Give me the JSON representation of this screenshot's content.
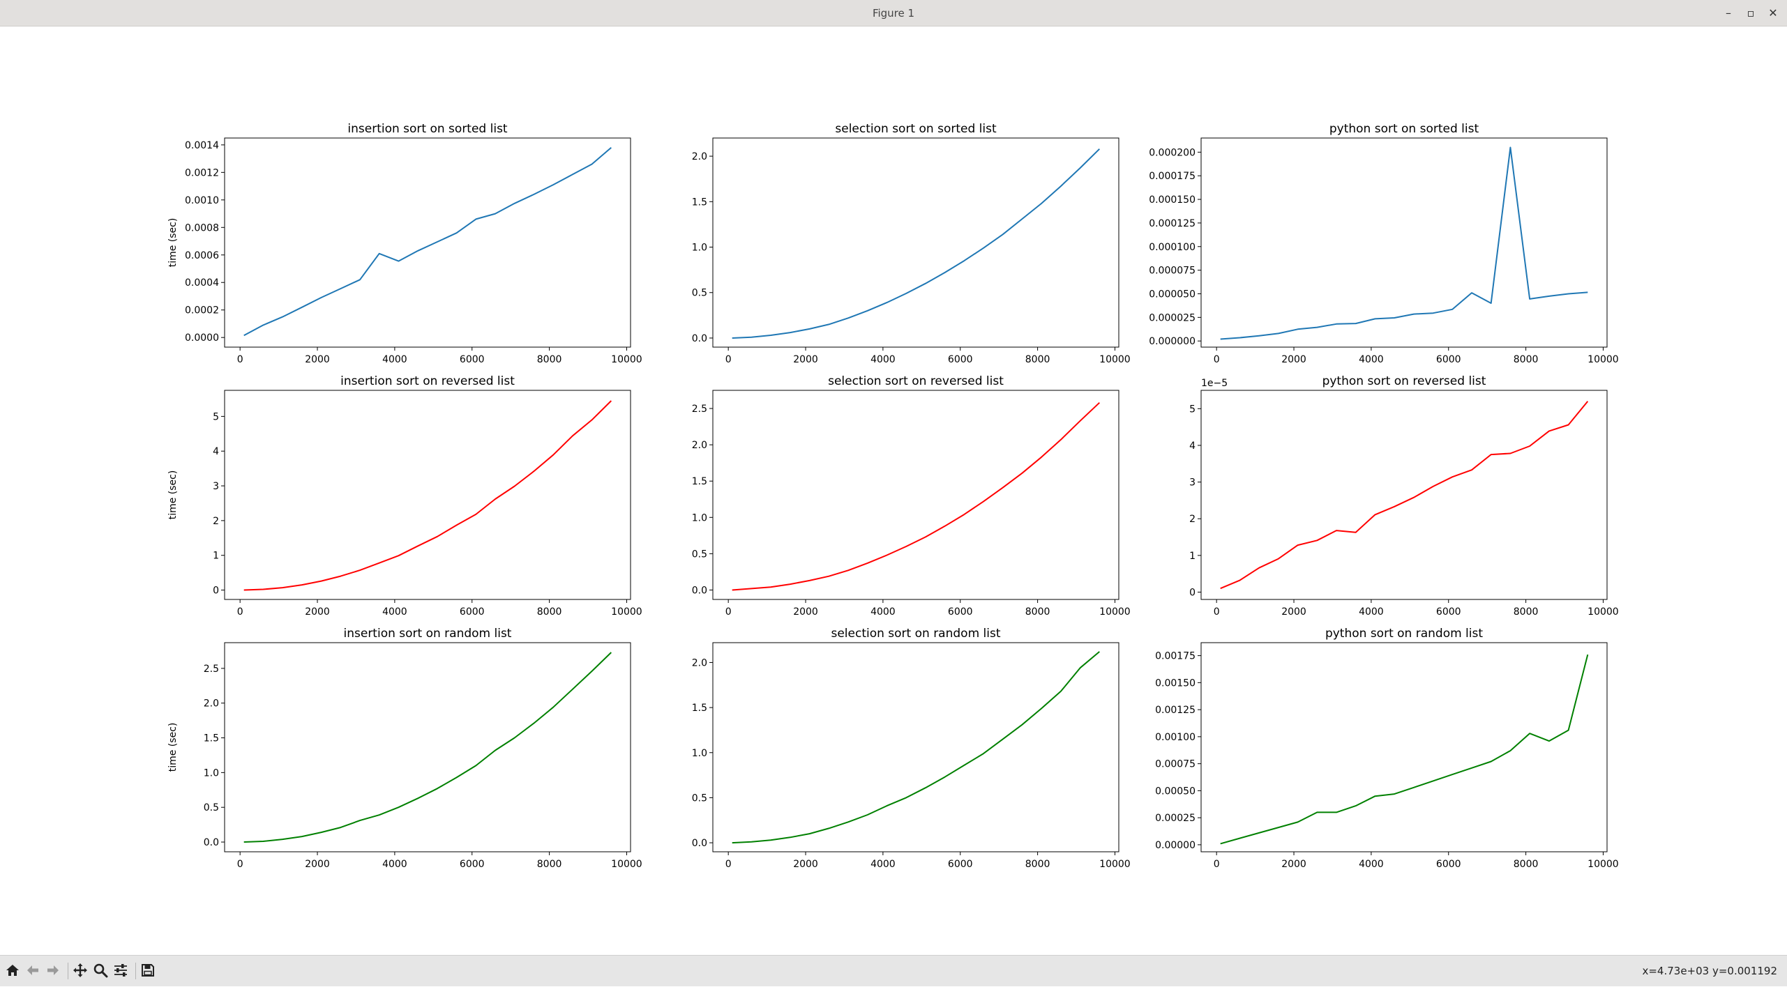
{
  "window": {
    "title": "Figure 1",
    "controls": {
      "minimize": "–",
      "maximize": "▫",
      "close": "✕"
    }
  },
  "toolbar": {
    "buttons": [
      {
        "name": "home-button",
        "icon": "home-icon"
      },
      {
        "name": "back-button",
        "icon": "arrow-left-icon"
      },
      {
        "name": "forward-button",
        "icon": "arrow-right-icon"
      },
      {
        "name": "pan-button",
        "icon": "move-icon"
      },
      {
        "name": "zoom-button",
        "icon": "magnifier-icon"
      },
      {
        "name": "configure-subplots-button",
        "icon": "sliders-icon"
      },
      {
        "name": "save-button",
        "icon": "floppy-disk-icon"
      }
    ],
    "status": "x=4.73e+03 y=0.001192"
  },
  "chart_data": [
    {
      "type": "line",
      "title": "insertion sort on sorted list",
      "ylabel": "time (sec)",
      "xlabel": "",
      "color": "#1f77b4",
      "xlim": [
        -400,
        10100
      ],
      "ylim": [
        -7e-05,
        0.00145
      ],
      "xticks": [
        0,
        2000,
        4000,
        6000,
        8000,
        10000
      ],
      "xtick_labels": [
        "0",
        "2000",
        "4000",
        "6000",
        "8000",
        "10000"
      ],
      "yticks": [
        0,
        0.0002,
        0.0004,
        0.0006,
        0.0008,
        0.001,
        0.0012,
        0.0014
      ],
      "ytick_labels": [
        "0.0000",
        "0.0002",
        "0.0004",
        "0.0006",
        "0.0008",
        "0.0010",
        "0.0012",
        "0.0014"
      ],
      "offset_label": "",
      "x": [
        100,
        600,
        1100,
        1600,
        2100,
        2600,
        3100,
        3600,
        4100,
        4600,
        5100,
        5600,
        6100,
        6600,
        7100,
        7600,
        8100,
        8600,
        9100,
        9600
      ],
      "y": [
        1.5e-05,
        9e-05,
        0.00015,
        0.00022,
        0.00029,
        0.000355,
        0.00042,
        0.00061,
        0.000555,
        0.00063,
        0.000695,
        0.00076,
        0.00086,
        0.0009,
        0.000975,
        0.00104,
        0.00111,
        0.001185,
        0.00126,
        0.00138
      ]
    },
    {
      "type": "line",
      "title": "selection sort on sorted list",
      "ylabel": "",
      "xlabel": "",
      "color": "#1f77b4",
      "xlim": [
        -400,
        10100
      ],
      "ylim": [
        -0.1,
        2.2
      ],
      "xticks": [
        0,
        2000,
        4000,
        6000,
        8000,
        10000
      ],
      "xtick_labels": [
        "0",
        "2000",
        "4000",
        "6000",
        "8000",
        "10000"
      ],
      "yticks": [
        0,
        0.5,
        1,
        1.5,
        2
      ],
      "ytick_labels": [
        "0.0",
        "0.5",
        "1.0",
        "1.5",
        "2.0"
      ],
      "offset_label": "",
      "x": [
        100,
        600,
        1100,
        1600,
        2100,
        2600,
        3100,
        3600,
        4100,
        4600,
        5100,
        5600,
        6100,
        6600,
        7100,
        7600,
        8100,
        8600,
        9100,
        9600
      ],
      "y": [
        0.0,
        0.01,
        0.03,
        0.06,
        0.1,
        0.15,
        0.22,
        0.3,
        0.39,
        0.49,
        0.6,
        0.72,
        0.85,
        0.99,
        1.14,
        1.31,
        1.48,
        1.67,
        1.87,
        2.08
      ]
    },
    {
      "type": "line",
      "title": "python sort on sorted list",
      "ylabel": "",
      "xlabel": "",
      "color": "#1f77b4",
      "xlim": [
        -400,
        10100
      ],
      "ylim": [
        -6.5e-06,
        0.000215
      ],
      "xticks": [
        0,
        2000,
        4000,
        6000,
        8000,
        10000
      ],
      "xtick_labels": [
        "0",
        "2000",
        "4000",
        "6000",
        "8000",
        "10000"
      ],
      "yticks": [
        0,
        2.5e-05,
        5e-05,
        7.5e-05,
        0.0001,
        0.000125,
        0.00015,
        0.000175,
        0.0002
      ],
      "ytick_labels": [
        "0.000000",
        "0.000025",
        "0.000050",
        "0.000075",
        "0.000100",
        "0.000125",
        "0.000150",
        "0.000175",
        "0.000200"
      ],
      "offset_label": "",
      "x": [
        100,
        600,
        1100,
        1600,
        2100,
        2600,
        3100,
        3600,
        4100,
        4600,
        5100,
        5600,
        6100,
        6600,
        7100,
        7600,
        8100,
        8600,
        9100,
        9600
      ],
      "y": [
        2e-06,
        3.5e-06,
        5.5e-06,
        8e-06,
        1.25e-05,
        1.45e-05,
        1.8e-05,
        1.85e-05,
        2.35e-05,
        2.45e-05,
        2.85e-05,
        2.95e-05,
        3.35e-05,
        5.1e-05,
        4e-05,
        0.000205,
        4.45e-05,
        4.75e-05,
        5e-05,
        5.15e-05
      ]
    },
    {
      "type": "line",
      "title": "insertion sort on reversed list",
      "ylabel": "time (sec)",
      "xlabel": "",
      "color": "#ff0000",
      "xlim": [
        -400,
        10100
      ],
      "ylim": [
        -0.27,
        5.75
      ],
      "xticks": [
        0,
        2000,
        4000,
        6000,
        8000,
        10000
      ],
      "xtick_labels": [
        "0",
        "2000",
        "4000",
        "6000",
        "8000",
        "10000"
      ],
      "yticks": [
        0,
        1,
        2,
        3,
        4,
        5
      ],
      "ytick_labels": [
        "0",
        "1",
        "2",
        "3",
        "4",
        "5"
      ],
      "offset_label": "",
      "x": [
        100,
        600,
        1100,
        1600,
        2100,
        2600,
        3100,
        3600,
        4100,
        4600,
        5100,
        5600,
        6100,
        6600,
        7100,
        7600,
        8100,
        8600,
        9100,
        9600
      ],
      "y": [
        0.0,
        0.02,
        0.07,
        0.15,
        0.26,
        0.4,
        0.57,
        0.78,
        0.99,
        1.27,
        1.54,
        1.87,
        2.18,
        2.62,
        2.99,
        3.42,
        3.89,
        4.44,
        4.9,
        5.45
      ]
    },
    {
      "type": "line",
      "title": "selection sort on reversed list",
      "ylabel": "",
      "xlabel": "",
      "color": "#ff0000",
      "xlim": [
        -400,
        10100
      ],
      "ylim": [
        -0.13,
        2.75
      ],
      "xticks": [
        0,
        2000,
        4000,
        6000,
        8000,
        10000
      ],
      "xtick_labels": [
        "0",
        "2000",
        "4000",
        "6000",
        "8000",
        "10000"
      ],
      "yticks": [
        0,
        0.5,
        1,
        1.5,
        2,
        2.5
      ],
      "ytick_labels": [
        "0.0",
        "0.5",
        "1.0",
        "1.5",
        "2.0",
        "2.5"
      ],
      "offset_label": "",
      "x": [
        100,
        600,
        1100,
        1600,
        2100,
        2600,
        3100,
        3600,
        4100,
        4600,
        5100,
        5600,
        6100,
        6600,
        7100,
        7600,
        8100,
        8600,
        9100,
        9600
      ],
      "y": [
        0.0,
        0.02,
        0.04,
        0.08,
        0.13,
        0.19,
        0.27,
        0.37,
        0.48,
        0.6,
        0.73,
        0.88,
        1.04,
        1.22,
        1.41,
        1.61,
        1.83,
        2.07,
        2.33,
        2.58
      ]
    },
    {
      "type": "line",
      "title": "python sort on reversed list",
      "ylabel": "",
      "xlabel": "",
      "color": "#ff0000",
      "xlim": [
        -400,
        10100
      ],
      "ylim": [
        -0.2,
        5.5
      ],
      "xticks": [
        0,
        2000,
        4000,
        6000,
        8000,
        10000
      ],
      "xtick_labels": [
        "0",
        "2000",
        "4000",
        "6000",
        "8000",
        "10000"
      ],
      "yticks": [
        0,
        1,
        2,
        3,
        4,
        5
      ],
      "ytick_labels": [
        "0",
        "1",
        "2",
        "3",
        "4",
        "5"
      ],
      "offset_label": "1e−5",
      "x": [
        100,
        600,
        1100,
        1600,
        2100,
        2600,
        3100,
        3600,
        4100,
        4600,
        5100,
        5600,
        6100,
        6600,
        7100,
        7600,
        8100,
        8600,
        9100,
        9600
      ],
      "y": [
        0.1,
        0.32,
        0.66,
        0.91,
        1.28,
        1.41,
        1.68,
        1.63,
        2.11,
        2.33,
        2.58,
        2.88,
        3.14,
        3.33,
        3.75,
        3.78,
        3.98,
        4.39,
        4.56,
        5.2
      ]
    },
    {
      "type": "line",
      "title": "insertion sort on random list",
      "ylabel": "time (sec)",
      "xlabel": "",
      "color": "#008000",
      "xlim": [
        -400,
        10100
      ],
      "ylim": [
        -0.14,
        2.87
      ],
      "xticks": [
        0,
        2000,
        4000,
        6000,
        8000,
        10000
      ],
      "xtick_labels": [
        "0",
        "2000",
        "4000",
        "6000",
        "8000",
        "10000"
      ],
      "yticks": [
        0,
        0.5,
        1,
        1.5,
        2,
        2.5
      ],
      "ytick_labels": [
        "0.0",
        "0.5",
        "1.0",
        "1.5",
        "2.0",
        "2.5"
      ],
      "offset_label": "",
      "x": [
        100,
        600,
        1100,
        1600,
        2100,
        2600,
        3100,
        3600,
        4100,
        4600,
        5100,
        5600,
        6100,
        6600,
        7100,
        7600,
        8100,
        8600,
        9100,
        9600
      ],
      "y": [
        0.0,
        0.01,
        0.04,
        0.08,
        0.14,
        0.21,
        0.31,
        0.39,
        0.5,
        0.63,
        0.77,
        0.93,
        1.1,
        1.32,
        1.5,
        1.71,
        1.94,
        2.2,
        2.46,
        2.73
      ]
    },
    {
      "type": "line",
      "title": "selection sort on random list",
      "ylabel": "",
      "xlabel": "",
      "color": "#008000",
      "xlim": [
        -400,
        10100
      ],
      "ylim": [
        -0.1,
        2.22
      ],
      "xticks": [
        0,
        2000,
        4000,
        6000,
        8000,
        10000
      ],
      "xtick_labels": [
        "0",
        "2000",
        "4000",
        "6000",
        "8000",
        "10000"
      ],
      "yticks": [
        0,
        0.5,
        1,
        1.5,
        2
      ],
      "ytick_labels": [
        "0.0",
        "0.5",
        "1.0",
        "1.5",
        "2.0"
      ],
      "offset_label": "",
      "x": [
        100,
        600,
        1100,
        1600,
        2100,
        2600,
        3100,
        3600,
        4100,
        4600,
        5100,
        5600,
        6100,
        6600,
        7100,
        7600,
        8100,
        8600,
        9100,
        9600
      ],
      "y": [
        0.0,
        0.01,
        0.03,
        0.06,
        0.1,
        0.16,
        0.23,
        0.31,
        0.41,
        0.5,
        0.61,
        0.73,
        0.86,
        0.99,
        1.15,
        1.31,
        1.49,
        1.68,
        1.94,
        2.12
      ]
    },
    {
      "type": "line",
      "title": "python sort on random list",
      "ylabel": "",
      "xlabel": "",
      "color": "#008000",
      "xlim": [
        -400,
        10100
      ],
      "ylim": [
        -6.5e-05,
        0.00187
      ],
      "xticks": [
        0,
        2000,
        4000,
        6000,
        8000,
        10000
      ],
      "xtick_labels": [
        "0",
        "2000",
        "4000",
        "6000",
        "8000",
        "10000"
      ],
      "yticks": [
        0,
        0.00025,
        0.0005,
        0.00075,
        0.001,
        0.00125,
        0.0015,
        0.00175
      ],
      "ytick_labels": [
        "0.00000",
        "0.00025",
        "0.00050",
        "0.00075",
        "0.00100",
        "0.00125",
        "0.00150",
        "0.00175"
      ],
      "offset_label": "",
      "x": [
        100,
        600,
        1100,
        1600,
        2100,
        2600,
        3100,
        3600,
        4100,
        4600,
        5100,
        5600,
        6100,
        6600,
        7100,
        7600,
        8100,
        8600,
        9100,
        9600
      ],
      "y": [
        1e-05,
        6e-05,
        0.00011,
        0.00016,
        0.00021,
        0.0003,
        0.0003,
        0.00036,
        0.00045,
        0.00047,
        0.00053,
        0.00059,
        0.00065,
        0.00071,
        0.00077,
        0.00087,
        0.00103,
        0.00096,
        0.00106,
        0.00176
      ]
    }
  ]
}
